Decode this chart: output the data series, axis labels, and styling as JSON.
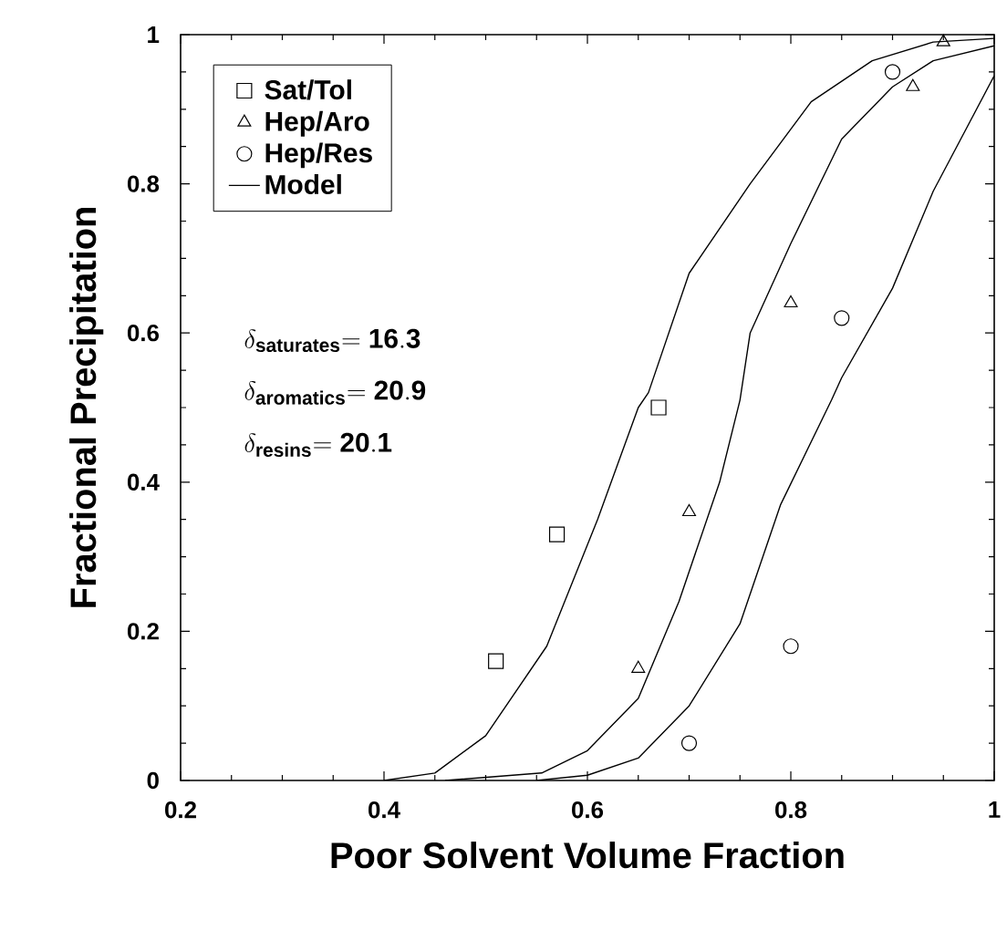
{
  "chart_data": {
    "type": "scatter",
    "xlabel": "Poor Solvent Volume Fraction",
    "ylabel": "Fractional Precipitation",
    "xlim": [
      0.2,
      1
    ],
    "ylim": [
      0,
      1
    ],
    "xticks": [
      0.2,
      0.4,
      0.6,
      0.8,
      1
    ],
    "yticks": [
      0,
      0.2,
      0.4,
      0.6,
      0.8,
      1
    ],
    "legend": "top left",
    "grid": false,
    "annotations": [
      "\\delta_{\\mathbf{saturates}}\\mathbf{= 16.3}",
      "\\delta_{\\mathbf{aromatics}}\\mathbf{= 20.9}",
      "\\delta_{\\mathbf{resins}}\\mathbf{= 20.1}"
    ],
    "series": [
      {
        "name": "Sat/Tol",
        "marker": "square",
        "color": "#000000",
        "x": [
          0.51,
          0.57,
          0.67
        ],
        "values": [
          0.16,
          0.33,
          0.5
        ]
      },
      {
        "name": "Hep/Aro",
        "marker": "triangle",
        "color": "#000000",
        "x": [
          0.65,
          0.7,
          0.8,
          0.92,
          0.95
        ],
        "values": [
          0.15,
          0.36,
          0.64,
          0.93,
          0.99
        ]
      },
      {
        "name": "Hep/Res",
        "marker": "circle",
        "color": "#000000",
        "x": [
          0.7,
          0.8,
          0.85,
          0.9
        ],
        "values": [
          0.05,
          0.18,
          0.62,
          0.95
        ]
      },
      {
        "name": "Model",
        "type": "line",
        "marker": "none",
        "color": "#000000",
        "x": [
          0.4,
          0.45,
          0.5,
          0.56,
          0.61,
          0.65,
          0.66,
          0.7,
          0.76,
          0.82,
          0.88,
          0.94,
          1.0
        ],
        "values": [
          0,
          0.01,
          0.06,
          0.18,
          0.35,
          0.5,
          0.52,
          0.68,
          0.8,
          0.91,
          0.965,
          0.99,
          0.995
        ]
      },
      {
        "type": "line",
        "marker": "none",
        "color": "#000000",
        "x": [
          0.46,
          0.555,
          0.6,
          0.65,
          0.69,
          0.73,
          0.75,
          0.76,
          0.8,
          0.85,
          0.9,
          0.94,
          1.0
        ],
        "values": [
          0,
          0.01,
          0.04,
          0.11,
          0.24,
          0.4,
          0.51,
          0.6,
          0.72,
          0.86,
          0.93,
          0.965,
          0.985
        ]
      },
      {
        "type": "line",
        "marker": "none",
        "color": "#000000",
        "x": [
          0.55,
          0.6,
          0.65,
          0.7,
          0.75,
          0.79,
          0.84,
          0.85,
          0.9,
          0.94,
          1.0
        ],
        "values": [
          0,
          0.007,
          0.03,
          0.1,
          0.21,
          0.37,
          0.51,
          0.54,
          0.66,
          0.79,
          0.945
        ]
      }
    ]
  }
}
